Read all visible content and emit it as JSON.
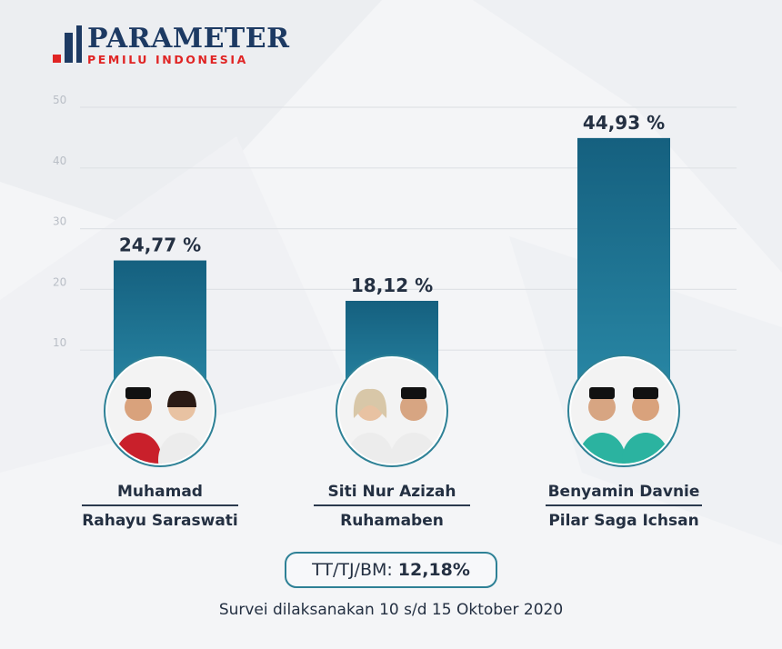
{
  "brand": {
    "title": "PARAMETER",
    "subtitle": "PEMILU INDONESIA",
    "primary_color": "#1d3a63",
    "accent_color": "#e02424"
  },
  "chart_data": {
    "type": "bar",
    "title": "",
    "xlabel": "",
    "ylabel": "",
    "ylim": [
      0,
      50
    ],
    "yticks": [
      10,
      20,
      30,
      40,
      50
    ],
    "grid": true,
    "categories": [
      "Muhamad – Rahayu Saraswati",
      "Siti Nur Azizah – Ruhamaben",
      "Benyamin Davnie – Pilar Saga Ichsan"
    ],
    "values": [
      24.77,
      18.12,
      44.93
    ],
    "value_labels": [
      "24,77 %",
      "18,12 %",
      "44,93 %"
    ],
    "bar_color_top": "#15607f",
    "bar_color_bottom": "#2a8aa8"
  },
  "candidates": [
    {
      "top": "Muhamad",
      "bottom": "Rahayu Saraswati",
      "photo_icon": "candidate-pair-photo-icon"
    },
    {
      "top": "Siti Nur Azizah",
      "bottom": "Ruhamaben",
      "photo_icon": "candidate-pair-photo-icon"
    },
    {
      "top": "Benyamin Davnie",
      "bottom": "Pilar Saga Ichsan",
      "photo_icon": "candidate-pair-photo-icon"
    }
  ],
  "summary": {
    "label": "TT/TJ/BM:",
    "value": "12,18%",
    "border_color": "#2e8196"
  },
  "footer": {
    "text": "Survei dilaksanakan 10 s/d 15 Oktober 2020"
  }
}
